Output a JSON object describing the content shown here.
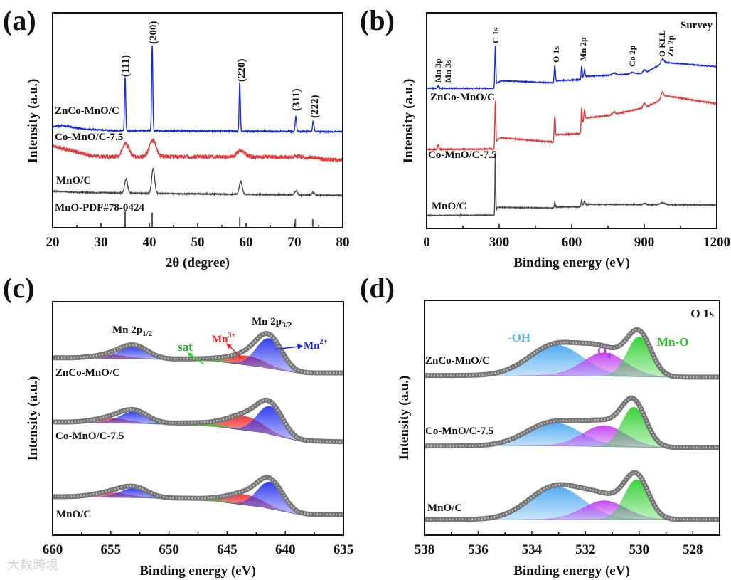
{
  "watermark": "大数跨境",
  "chart_data": [
    {
      "panel_label": "(a)",
      "type": "line",
      "xlabel": "2θ (degree)",
      "ylabel": "Intensity (a.u.)",
      "xlim": [
        20,
        80
      ],
      "ylim": [
        0,
        100
      ],
      "xticks": [
        20,
        30,
        40,
        50,
        60,
        70,
        80
      ],
      "minor_step": 5,
      "series": [
        {
          "name": "ZnCo-MnO/C",
          "color": "#1a2be0",
          "noise": 0.3,
          "background": [
            [
              20,
              47
            ],
            [
              22,
              47.6
            ],
            [
              26,
              46
            ],
            [
              32,
              45.2
            ],
            [
              80,
              44.7
            ]
          ],
          "peaks": [
            [
              35.0,
              25,
              0.12
            ],
            [
              40.6,
              40,
              0.12
            ],
            [
              58.7,
              23,
              0.12
            ],
            [
              70.3,
              7,
              0.14
            ],
            [
              73.9,
              5,
              0.14
            ]
          ]
        },
        {
          "name": "Co-MnO/C-7.5",
          "color": "#e03a3a",
          "noise": 0.9,
          "background": [
            [
              20,
              38
            ],
            [
              22,
              37
            ],
            [
              27,
              34
            ],
            [
              30,
              33
            ],
            [
              65,
              33
            ],
            [
              80,
              31.5
            ]
          ],
          "peaks": [
            [
              35.1,
              6,
              0.7
            ],
            [
              40.7,
              7.5,
              0.7
            ],
            [
              58.9,
              3,
              0.8
            ],
            [
              70.5,
              1,
              0.8
            ],
            [
              74.0,
              0.6,
              0.8
            ]
          ]
        },
        {
          "name": "MnO/C",
          "color": "#4a4a4a",
          "noise": 0.25,
          "background": [
            [
              20,
              17
            ],
            [
              25,
              16.5
            ],
            [
              40,
              16
            ],
            [
              80,
              15
            ]
          ],
          "peaks": [
            [
              35.2,
              6.5,
              0.3
            ],
            [
              40.8,
              11.5,
              0.3
            ],
            [
              58.9,
              6,
              0.3
            ],
            [
              70.3,
              1.8,
              0.3
            ],
            [
              73.9,
              1.2,
              0.3
            ]
          ]
        }
      ],
      "reference": {
        "name": "MnO-PDF#78-0424",
        "color": "#555555",
        "sticks": [
          [
            35.0,
            7.6
          ],
          [
            40.6,
            7
          ],
          [
            58.7,
            5
          ],
          [
            70.2,
            4
          ],
          [
            73.8,
            4
          ]
        ]
      },
      "peak_labels": [
        "(111)",
        "(200)",
        "(220)",
        "(311)",
        "(222)"
      ]
    },
    {
      "panel_label": "(b)",
      "type": "line",
      "title": "Survey",
      "xlabel": "Binding energy (eV)",
      "ylabel": "Intensity (a.u.)",
      "xlim": [
        0,
        1200
      ],
      "ylim": [
        0,
        100
      ],
      "xticks": [
        0,
        300,
        600,
        900,
        1200
      ],
      "minor_step": 150,
      "series": [
        {
          "name": "ZnCo-MnO/C",
          "color": "#1a2be0",
          "noise": 0.2,
          "background": [
            [
              0,
              65
            ],
            [
              280,
              65
            ],
            [
              292,
              67.5
            ],
            [
              310,
              68.5
            ],
            [
              525,
              67.5
            ],
            [
              540,
              68.5
            ],
            [
              637,
              69
            ],
            [
              650,
              70.5
            ],
            [
              760,
              71
            ],
            [
              900,
              72
            ],
            [
              950,
              75
            ],
            [
              985,
              77
            ],
            [
              1200,
              75
            ]
          ],
          "peaks": [
            [
              48,
              1,
              3
            ],
            [
              284,
              19,
              2
            ],
            [
              530,
              8,
              2.5
            ],
            [
              641,
              6,
              2
            ],
            [
              653,
              3,
              2
            ],
            [
              775,
              1,
              8
            ],
            [
              850,
              0.7,
              8
            ],
            [
              900,
              1.5,
              5
            ],
            [
              975,
              2,
              6
            ]
          ]
        },
        {
          "name": "Co-MnO/C-7.5",
          "color": "#e03a3a",
          "noise": 0.25,
          "background": [
            [
              0,
              36.6
            ],
            [
              280,
              36.8
            ],
            [
              292,
              41
            ],
            [
              310,
              42
            ],
            [
              525,
              40
            ],
            [
              540,
              43.5
            ],
            [
              637,
              44
            ],
            [
              650,
              51
            ],
            [
              760,
              52.5
            ],
            [
              900,
              56
            ],
            [
              950,
              58.5
            ],
            [
              990,
              61.5
            ],
            [
              1200,
              57.8
            ]
          ],
          "peaks": [
            [
              48,
              2,
              3
            ],
            [
              284,
              21,
              2
            ],
            [
              530,
              11,
              2.5
            ],
            [
              641,
              10,
              2
            ],
            [
              653,
              4,
              2
            ],
            [
              775,
              1.2,
              6
            ],
            [
              900,
              2,
              5
            ],
            [
              975,
              3,
              5
            ]
          ]
        },
        {
          "name": "MnO/C",
          "color": "#4a4a4a",
          "noise": 0.2,
          "background": [
            [
              0,
              6
            ],
            [
              280,
              6.2
            ],
            [
              292,
              9.8
            ],
            [
              520,
              9.5
            ],
            [
              535,
              10
            ],
            [
              637,
              10
            ],
            [
              650,
              11.2
            ],
            [
              1200,
              10.9
            ]
          ],
          "peaks": [
            [
              284,
              27.5,
              1.5
            ],
            [
              530,
              2.5,
              2
            ],
            [
              641,
              3,
              2
            ],
            [
              653,
              1.5,
              2
            ],
            [
              900,
              0.5,
              5
            ],
            [
              975,
              0.8,
              10
            ]
          ]
        }
      ],
      "peak_labels": [
        "Mn 3p",
        "Mn 3s",
        "C 1s",
        "O 1s",
        "Mn 2p",
        "Co 2p",
        "O KLL",
        "Zn 2p"
      ]
    },
    {
      "panel_label": "(c)",
      "type": "area",
      "xlabel": "Binding energy (eV)",
      "ylabel": "Intensity (a.u.)",
      "xlim": [
        660,
        635
      ],
      "ylim": [
        0,
        100
      ],
      "xticks": [
        660,
        655,
        650,
        645,
        640,
        635
      ],
      "minor_step": 2.5,
      "component_colors": {
        "Mn2+": "#2a35ee",
        "Mn3+": "#ee3535",
        "sat": "#33cc33"
      },
      "series": [
        {
          "name": "ZnCo-MnO/C",
          "background": [
            [
              660,
              76
            ],
            [
              652,
              75.5
            ],
            [
              646,
              74.5
            ],
            [
              642,
              72
            ],
            [
              639,
              69.5
            ],
            [
              635,
              69.5
            ]
          ],
          "components": [
            {
              "name": "Mn3+",
              "center": 655,
              "height": 1.5,
              "width": 1.5
            },
            {
              "name": "Mn3+",
              "center": 643.3,
              "height": 4,
              "width": 1.5
            },
            {
              "name": "sat",
              "center": 647,
              "height": 0.8,
              "width": 2
            },
            {
              "name": "Mn2+",
              "center": 653,
              "height": 5.3,
              "width": 1.2
            },
            {
              "name": "Mn2+",
              "center": 641.4,
              "height": 12.8,
              "width": 1.1
            }
          ]
        },
        {
          "name": "Co-MnO/C-7.5",
          "background": [
            [
              660,
              48.5
            ],
            [
              652,
              47.8
            ],
            [
              646,
              46.5
            ],
            [
              642,
              44
            ],
            [
              639,
              40.5
            ],
            [
              635,
              40
            ]
          ],
          "components": [
            {
              "name": "Mn3+",
              "center": 655,
              "height": 2,
              "width": 1.5
            },
            {
              "name": "Mn3+",
              "center": 643.5,
              "height": 6,
              "width": 1.5
            },
            {
              "name": "sat",
              "center": 647.5,
              "height": 1.2,
              "width": 2
            },
            {
              "name": "Mn2+",
              "center": 653,
              "height": 5,
              "width": 1.2
            },
            {
              "name": "Mn2+",
              "center": 641.3,
              "height": 12,
              "width": 1.1
            }
          ]
        },
        {
          "name": "MnO/C",
          "background": [
            [
              660,
              16.5
            ],
            [
              652,
              16
            ],
            [
              646,
              14.5
            ],
            [
              642,
              12
            ],
            [
              639,
              9
            ],
            [
              635,
              8.8
            ]
          ],
          "components": [
            {
              "name": "Mn3+",
              "center": 655,
              "height": 2,
              "width": 1.5
            },
            {
              "name": "Mn3+",
              "center": 643.5,
              "height": 4.5,
              "width": 1.5
            },
            {
              "name": "sat",
              "center": 647.5,
              "height": 0.8,
              "width": 2
            },
            {
              "name": "Mn2+",
              "center": 653,
              "height": 4,
              "width": 1.2
            },
            {
              "name": "Mn2+",
              "center": 641.3,
              "height": 11.5,
              "width": 1.1
            }
          ]
        }
      ],
      "annotations": {
        "mn2p12": {
          "main": "Mn 2p",
          "sub": "1/2"
        },
        "mn2p32": {
          "main": "Mn 2p",
          "sub": "3/2"
        },
        "sat": "sat",
        "mn3": {
          "main": "Mn",
          "sup": "3+"
        },
        "mn2": {
          "main": "Mn",
          "sup": "2+"
        }
      }
    },
    {
      "panel_label": "(d)",
      "type": "area",
      "title": "O 1s",
      "xlabel": "Binding energy (eV)",
      "ylabel": "Intensity (a.u.)",
      "xlim": [
        538,
        527
      ],
      "ylim": [
        0,
        100
      ],
      "xticks": [
        538,
        536,
        534,
        532,
        530,
        528
      ],
      "minor_step": 1,
      "component_colors": {
        "-OH": "#4aa8f0",
        "Od": "#c040f0",
        "Mn-O": "#30d030"
      },
      "series": [
        {
          "name": "ZnCo-MnO/C",
          "background": [
            [
              538,
              68
            ],
            [
              533,
              68
            ],
            [
              529,
              67.3
            ],
            [
              527,
              67.3
            ]
          ],
          "components": [
            {
              "name": "-OH",
              "center": 533.1,
              "height": 13,
              "width": 1.0
            },
            {
              "name": "Od",
              "center": 531.3,
              "height": 10,
              "width": 0.8
            },
            {
              "name": "Mn-O",
              "center": 530.0,
              "height": 17,
              "width": 0.45
            }
          ]
        },
        {
          "name": "Co-MnO/C-7.5",
          "background": [
            [
              538,
              38
            ],
            [
              533,
              38
            ],
            [
              529,
              37.3
            ],
            [
              527,
              37.3
            ]
          ],
          "components": [
            {
              "name": "-OH",
              "center": 533.2,
              "height": 10,
              "width": 1.0
            },
            {
              "name": "Od",
              "center": 531.3,
              "height": 9,
              "width": 0.8
            },
            {
              "name": "Mn-O",
              "center": 530.2,
              "height": 17,
              "width": 0.45
            }
          ]
        },
        {
          "name": "MnO/C",
          "background": [
            [
              538,
              6.7
            ],
            [
              527,
              6.7
            ]
          ],
          "components": [
            {
              "name": "-OH",
              "center": 533.1,
              "height": 14,
              "width": 1.0
            },
            {
              "name": "Od",
              "center": 531.3,
              "height": 8,
              "width": 0.8
            },
            {
              "name": "Mn-O",
              "center": 530.1,
              "height": 17,
              "width": 0.45
            }
          ]
        }
      ],
      "annotations": {
        "oh": "-OH",
        "od": {
          "main": "O",
          "sub": "d"
        },
        "mno": "Mn-O"
      }
    }
  ]
}
